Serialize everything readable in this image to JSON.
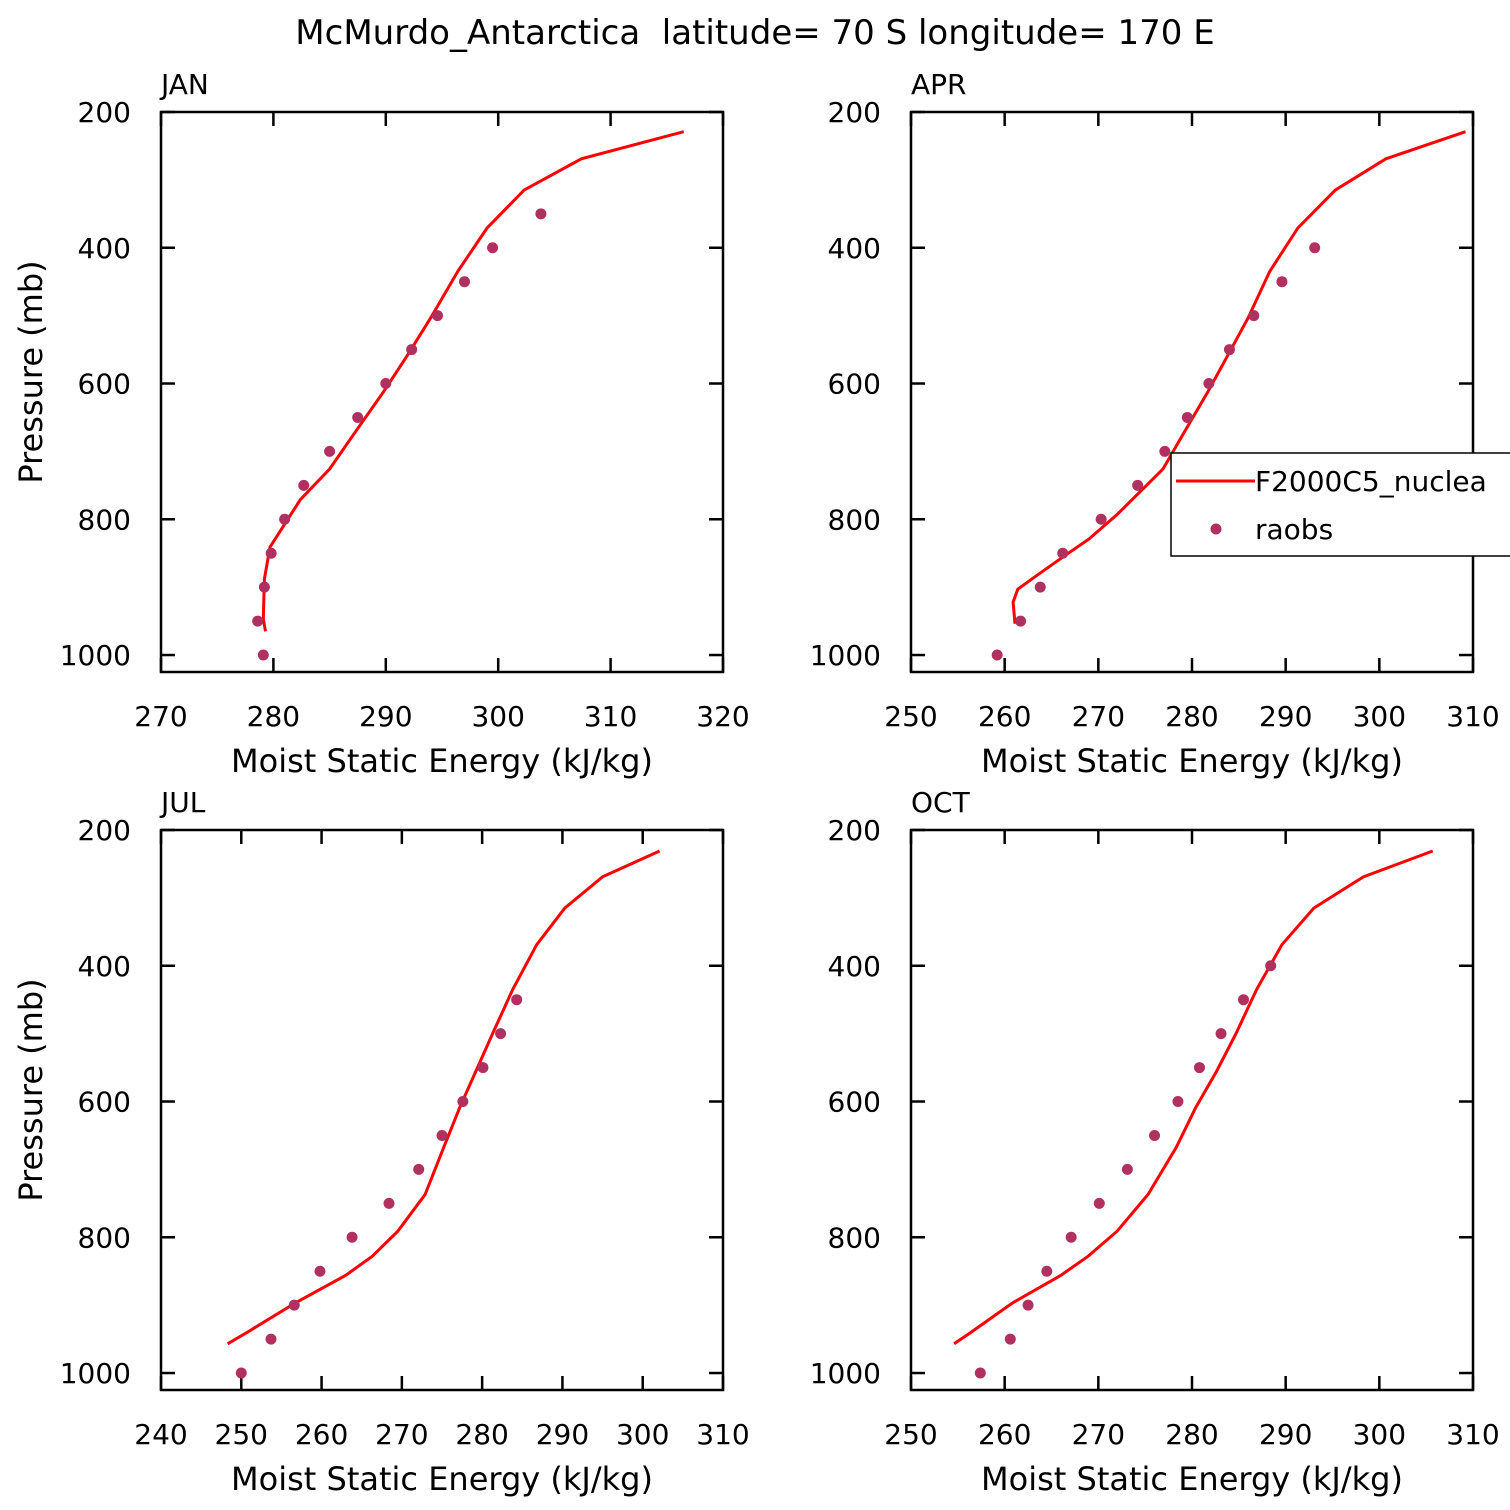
{
  "title": "McMurdo_Antarctica  latitude= 70 S longitude= 170 E",
  "chart_data": [
    {
      "type": "line",
      "title": "JAN",
      "xlabel": "Moist Static Energy (kJ/kg)",
      "ylabel": "Pressure (mb)",
      "xlim": [
        270,
        320
      ],
      "xticks": [
        270,
        280,
        290,
        300,
        310,
        320
      ],
      "ylim": [
        1025,
        200
      ],
      "yticks": [
        200,
        400,
        600,
        800,
        1000
      ],
      "series": [
        {
          "type": "line",
          "color": "#ff0000",
          "x": [
            316.5,
            307.4,
            302.3,
            299.0,
            296.4,
            294.0,
            291.9,
            289.8,
            287.3,
            285.0,
            282.4,
            279.7,
            279.2,
            279.1,
            279.3
          ],
          "values": [
            229,
            269,
            315,
            371,
            435,
            503,
            559,
            612,
            671,
            726,
            771,
            841,
            888,
            947,
            965
          ]
        },
        {
          "type": "scatter",
          "color": "#b03060",
          "x": [
            303.8,
            299.5,
            297.0,
            294.6,
            292.3,
            290.0,
            287.5,
            285.0,
            282.7,
            281.0,
            279.8,
            279.2,
            278.6,
            279.1
          ],
          "values": [
            350,
            400,
            450,
            500,
            550,
            600,
            650,
            700,
            750,
            800,
            850,
            900,
            950,
            1000
          ]
        }
      ]
    },
    {
      "type": "line",
      "title": "APR",
      "xlabel": "Moist Static Energy (kJ/kg)",
      "xlim": [
        250,
        310
      ],
      "xticks": [
        250,
        260,
        270,
        280,
        290,
        300,
        310
      ],
      "ylim": [
        1025,
        200
      ],
      "yticks": [
        200,
        400,
        600,
        800,
        1000
      ],
      "legend": "right",
      "series": [
        {
          "name": "F2000C5_nuclea",
          "type": "line",
          "color": "#ff0000",
          "x": [
            309.2,
            300.7,
            295.3,
            291.3,
            288.3,
            286.0,
            283.8,
            281.7,
            279.2,
            276.9,
            272.0,
            269.0,
            266.5,
            263.3,
            261.4,
            260.9,
            261.1
          ],
          "values": [
            229,
            269,
            315,
            371,
            435,
            503,
            559,
            612,
            671,
            726,
            793,
            829,
            853,
            884,
            903,
            922,
            954
          ]
        },
        {
          "name": "raobs",
          "type": "scatter",
          "color": "#b03060",
          "x": [
            293.1,
            289.6,
            286.6,
            284.0,
            281.8,
            279.5,
            277.1,
            274.2,
            270.3,
            266.2,
            263.8,
            261.7,
            259.2
          ],
          "values": [
            400,
            450,
            500,
            550,
            600,
            650,
            700,
            750,
            800,
            850,
            900,
            950,
            1000
          ]
        }
      ]
    },
    {
      "type": "line",
      "title": "JUL",
      "xlabel": "Moist Static Energy (kJ/kg)",
      "ylabel": "Pressure (mb)",
      "xlim": [
        240,
        310
      ],
      "xticks": [
        240,
        250,
        260,
        270,
        280,
        290,
        300,
        310
      ],
      "ylim": [
        1025,
        200
      ],
      "yticks": [
        200,
        400,
        600,
        800,
        1000
      ],
      "series": [
        {
          "type": "line",
          "color": "#ff0000",
          "x": [
            302.1,
            295.0,
            290.3,
            286.8,
            283.8,
            281.3,
            279.2,
            277.2,
            275.2,
            272.9,
            269.5,
            266.3,
            263.0,
            256.7,
            250.6,
            248.3
          ],
          "values": [
            231,
            269,
            315,
            369,
            435,
            500,
            556,
            609,
            668,
            737,
            791,
            828,
            856,
            897,
            941,
            957
          ]
        },
        {
          "type": "scatter",
          "color": "#b03060",
          "x": [
            284.3,
            282.3,
            280.1,
            277.6,
            275.0,
            272.1,
            268.4,
            263.8,
            259.8,
            256.6,
            253.7,
            250.0
          ],
          "values": [
            450,
            500,
            550,
            600,
            650,
            700,
            750,
            800,
            850,
            900,
            950,
            1000
          ]
        }
      ]
    },
    {
      "type": "line",
      "title": "OCT",
      "xlabel": "Moist Static Energy (kJ/kg)",
      "xlim": [
        250,
        310
      ],
      "xticks": [
        250,
        260,
        270,
        280,
        290,
        300,
        310
      ],
      "ylim": [
        1025,
        200
      ],
      "yticks": [
        200,
        400,
        600,
        800,
        1000
      ],
      "series": [
        {
          "type": "line",
          "color": "#ff0000",
          "x": [
            305.7,
            298.3,
            293.0,
            289.6,
            286.9,
            284.7,
            282.6,
            280.4,
            278.3,
            275.3,
            272.0,
            268.9,
            266.0,
            260.8,
            256.3,
            254.6
          ],
          "values": [
            231,
            269,
            315,
            369,
            435,
            500,
            556,
            609,
            668,
            737,
            791,
            828,
            856,
            897,
            941,
            957
          ]
        },
        {
          "type": "scatter",
          "color": "#b03060",
          "x": [
            288.4,
            285.5,
            283.1,
            280.8,
            278.5,
            276.0,
            273.1,
            270.1,
            267.1,
            264.5,
            262.5,
            260.6,
            257.4
          ],
          "values": [
            400,
            450,
            500,
            550,
            600,
            650,
            700,
            750,
            800,
            850,
            900,
            950,
            1000
          ]
        }
      ]
    }
  ]
}
